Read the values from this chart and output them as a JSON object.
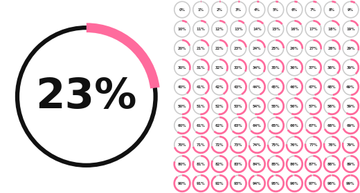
{
  "main_percent": 23,
  "main_ring_color_bg": "#111111",
  "main_ring_color_fg": "#ff6b9d",
  "small_ring_color_bg": "#cccccc",
  "small_ring_color_fg": "#ff6b9d",
  "bg_color": "#ffffff",
  "grid_cols": 10,
  "grid_rows": 10,
  "main_text_fontsize": 44,
  "small_text_fontsize": 3.8,
  "main_text_color": "#111111",
  "small_text_color": "#333333",
  "main_lw": 4.5,
  "small_lw_bg": 1.2,
  "small_lw_fg": 3.5
}
